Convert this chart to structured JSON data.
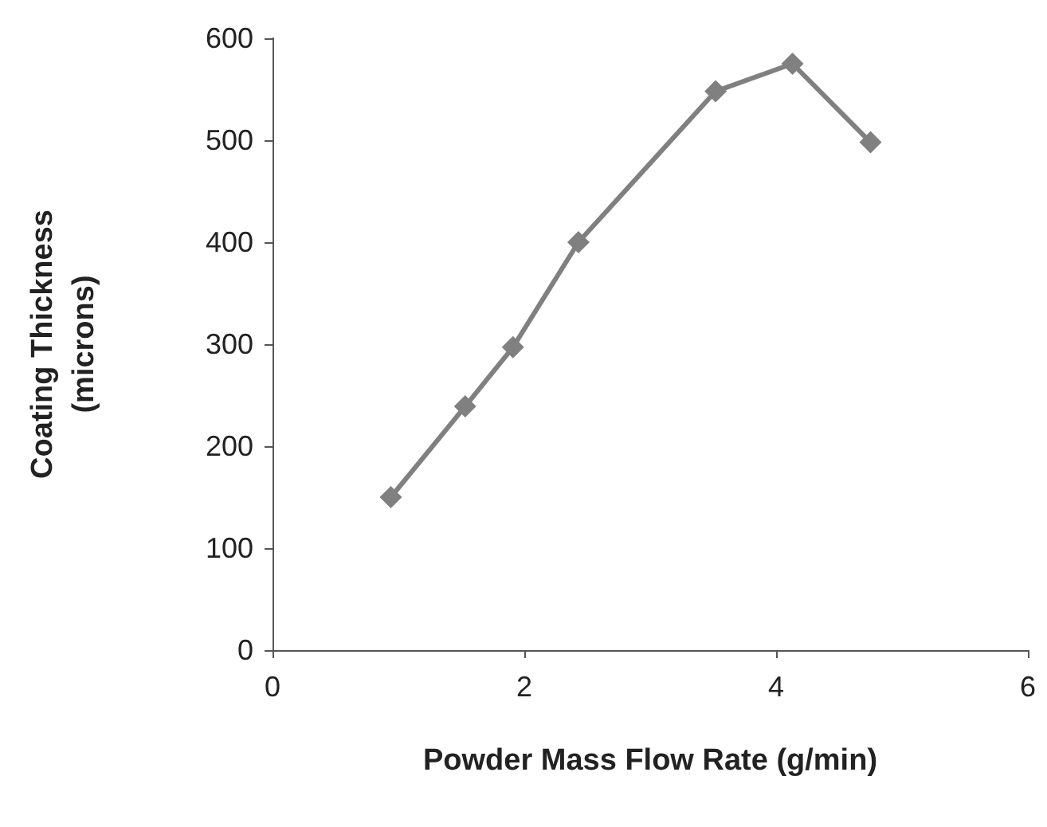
{
  "chart_data": {
    "type": "line",
    "xlabel": "Powder Mass Flow Rate (g/min)",
    "ylabel": "Coating Thickness\n(microns)",
    "x": [
      0.94,
      1.53,
      1.91,
      2.43,
      3.52,
      4.13,
      4.75
    ],
    "series": [
      {
        "color": "#808080",
        "values": [
          150,
          239,
          297,
          400,
          548,
          575,
          498
        ]
      }
    ],
    "xlim": [
      0,
      6
    ],
    "xticks": [
      0,
      2,
      4,
      6
    ],
    "ylim": [
      0,
      600
    ],
    "yticks": [
      0,
      100,
      200,
      300,
      400,
      500,
      600
    ],
    "grid": false,
    "legend": false,
    "marker": "diamond",
    "line_style": "solid"
  }
}
